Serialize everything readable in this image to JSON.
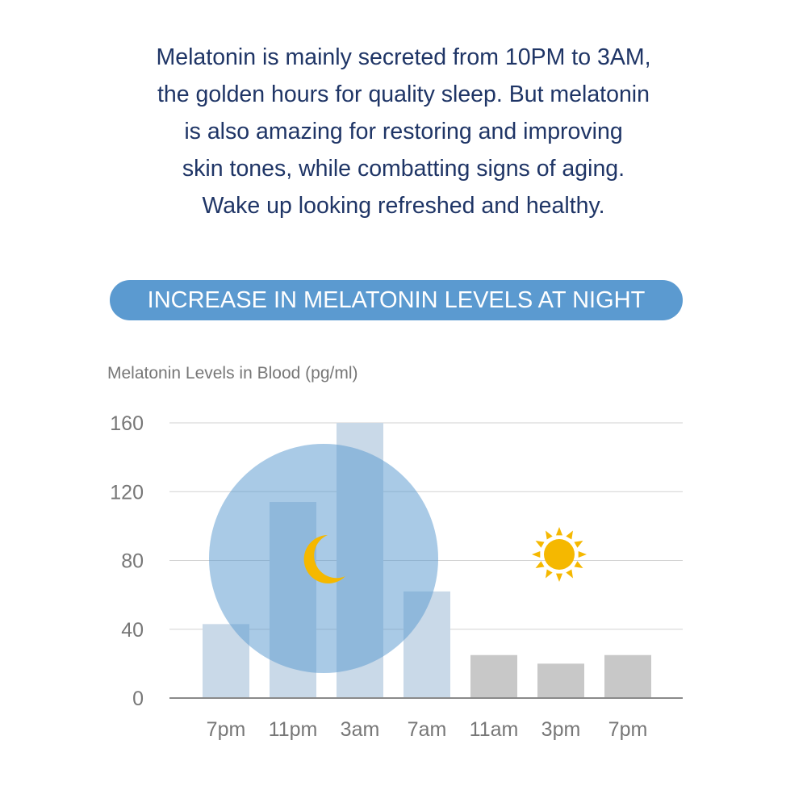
{
  "intro": {
    "lines": [
      "Melatonin is mainly secreted from 10PM to 3AM,",
      "the golden hours for quality sleep. But melatonin",
      "is also amazing for restoring and improving",
      "skin tones, while combatting signs of aging.",
      "Wake up looking refreshed and healthy."
    ]
  },
  "banner": {
    "title": "INCREASE IN MELATONIN LEVELS AT NIGHT"
  },
  "chart_data": {
    "type": "bar",
    "title": "INCREASE IN MELATONIN LEVELS AT NIGHT",
    "xlabel": "",
    "ylabel": "Melatonin Levels in Blood (pg/ml)",
    "categories": [
      "7pm",
      "11pm",
      "3am",
      "7am",
      "11am",
      "3pm",
      "7pm"
    ],
    "values": [
      43,
      114,
      160,
      62,
      25,
      20,
      25
    ],
    "yticks": [
      0,
      40,
      80,
      120,
      160
    ],
    "ylim": [
      0,
      160
    ],
    "grid": true,
    "bar_colors": [
      "#c9d9e8",
      "#c9d9e8",
      "#c9d9e8",
      "#c9d9e8",
      "#c8c8c8",
      "#c8c8c8",
      "#c8c8c8"
    ],
    "night_circle_color": "#5b9ad0",
    "icons": [
      "moon-icon",
      "sun-icon"
    ],
    "icon_color": "#f5b800"
  }
}
